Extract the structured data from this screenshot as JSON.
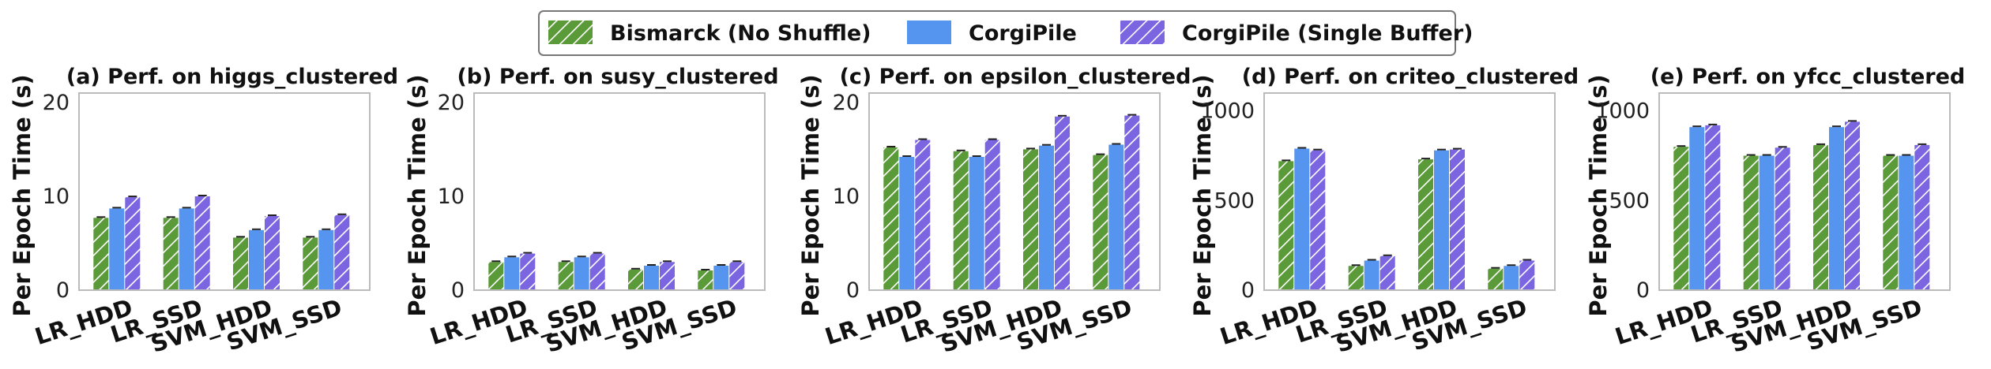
{
  "chart_data": {
    "type": "bar",
    "ylabel": "Per Epoch Time (s)",
    "legend": {
      "placement": "top-center",
      "series": [
        {
          "name": "Bismarck (No Shuffle)",
          "color": "#5a9a38",
          "pattern": "hatch"
        },
        {
          "name": "CorgiPile",
          "color": "#5595f0",
          "pattern": "solid"
        },
        {
          "name": "CorgiPile (Single Buffer)",
          "color": "#7b65e0",
          "pattern": "hatch"
        }
      ]
    },
    "panels": [
      {
        "title": "(a) Perf. on higgs_clustered",
        "categories": [
          "LR_HDD",
          "LR_SSD",
          "SVM_HDD",
          "SVM_SSD"
        ],
        "ylim": [
          0,
          21
        ],
        "yticks": [
          0,
          10,
          20
        ],
        "series": [
          {
            "name": "Bismarck (No Shuffle)",
            "values": [
              7.7,
              7.7,
              5.6,
              5.6
            ]
          },
          {
            "name": "CorgiPile",
            "values": [
              8.7,
              8.7,
              6.4,
              6.4
            ]
          },
          {
            "name": "CorgiPile (Single Buffer)",
            "values": [
              9.9,
              10.0,
              7.9,
              8.0
            ]
          }
        ]
      },
      {
        "title": "(b) Perf. on susy_clustered",
        "categories": [
          "LR_HDD",
          "LR_SSD",
          "SVM_HDD",
          "SVM_SSD"
        ],
        "ylim": [
          0,
          21
        ],
        "yticks": [
          0,
          10,
          20
        ],
        "series": [
          {
            "name": "Bismarck (No Shuffle)",
            "values": [
              3.0,
              3.0,
              2.2,
              2.1
            ]
          },
          {
            "name": "CorgiPile",
            "values": [
              3.5,
              3.5,
              2.6,
              2.6
            ]
          },
          {
            "name": "CorgiPile (Single Buffer)",
            "values": [
              3.9,
              3.9,
              3.0,
              3.0
            ]
          }
        ]
      },
      {
        "title": "(c) Perf. on epsilon_clustered",
        "categories": [
          "LR_HDD",
          "LR_SSD",
          "SVM_HDD",
          "SVM_SSD"
        ],
        "ylim": [
          0,
          21
        ],
        "yticks": [
          0,
          10,
          20
        ],
        "series": [
          {
            "name": "Bismarck (No Shuffle)",
            "values": [
              15.2,
              14.8,
              15.0,
              14.4
            ]
          },
          {
            "name": "CorgiPile",
            "values": [
              14.2,
              14.2,
              15.4,
              15.5
            ]
          },
          {
            "name": "CorgiPile (Single Buffer)",
            "values": [
              16.0,
              16.0,
              18.5,
              18.6
            ]
          }
        ]
      },
      {
        "title": "(d) Perf. on criteo_clustered",
        "categories": [
          "LR_HDD",
          "LR_SSD",
          "SVM_HDD",
          "SVM_SSD"
        ],
        "ylim": [
          0,
          1100
        ],
        "yticks": [
          0,
          500,
          1000
        ],
        "series": [
          {
            "name": "Bismarck (No Shuffle)",
            "values": [
              720,
              135,
              730,
              120
            ]
          },
          {
            "name": "CorgiPile",
            "values": [
              790,
              165,
              780,
              135
            ]
          },
          {
            "name": "CorgiPile (Single Buffer)",
            "values": [
              780,
              190,
              785,
              165
            ]
          }
        ]
      },
      {
        "title": "(e) Perf. on yfcc_clustered",
        "categories": [
          "LR_HDD",
          "LR_SSD",
          "SVM_HDD",
          "SVM_SSD"
        ],
        "ylim": [
          0,
          1100
        ],
        "yticks": [
          0,
          500,
          1000
        ],
        "series": [
          {
            "name": "Bismarck (No Shuffle)",
            "values": [
              800,
              750,
              810,
              750
            ]
          },
          {
            "name": "CorgiPile",
            "values": [
              910,
              750,
              910,
              750
            ]
          },
          {
            "name": "CorgiPile (Single Buffer)",
            "values": [
              920,
              795,
              940,
              810
            ]
          }
        ]
      }
    ]
  }
}
